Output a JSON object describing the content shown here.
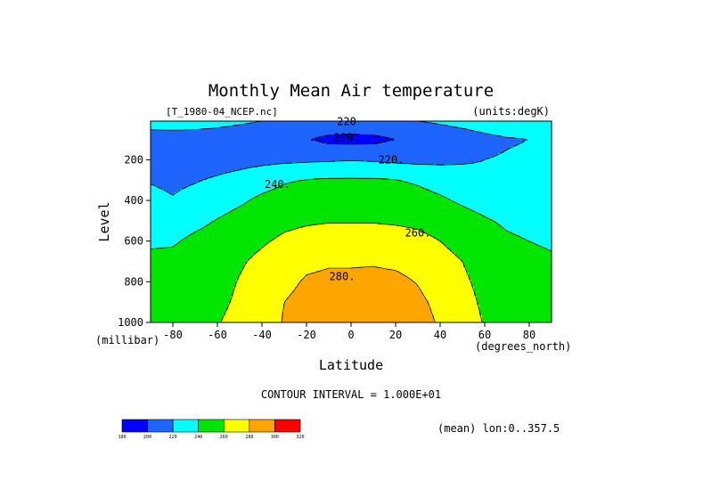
{
  "chart_data": {
    "type": "heatmap",
    "subtype": "filled-contour",
    "title": "Monthly Mean Air temperature",
    "file_label": "[T_1980-04_NCEP.nc]",
    "units_label": "(units:degK)",
    "xlabel": "Latitude",
    "xunit_label": "(degrees_north)",
    "ylabel": "Level",
    "yunit_label": "(millibar)",
    "xlim": [
      -90,
      90
    ],
    "ylim": [
      1000,
      10
    ],
    "y_reversed": true,
    "x_ticks": [
      "-80",
      "-60",
      "-40",
      "-20",
      "0",
      "20",
      "40",
      "60",
      "80"
    ],
    "y_ticks": [
      "200",
      "400",
      "600",
      "800",
      "1000"
    ],
    "contour_interval_label": "CONTOUR INTERVAL = 1.000E+01",
    "footnote": "(mean) lon:0..357.5",
    "contour_labels": [
      {
        "text": "220",
        "lat": -2,
        "lev": 12
      },
      {
        "text": "200.",
        "lat": -2,
        "lev": 92
      },
      {
        "text": "220.",
        "lat": 18,
        "lev": 200
      },
      {
        "text": "240.",
        "lat": -33,
        "lev": 320
      },
      {
        "text": "260.",
        "lat": 30,
        "lev": 560
      },
      {
        "text": "280.",
        "lat": -4,
        "lev": 775
      }
    ],
    "levels": [
      180,
      200,
      220,
      240,
      260,
      280,
      300,
      320
    ],
    "colorbar": {
      "ticks": [
        "180",
        "200",
        "220",
        "240",
        "260",
        "280",
        "300",
        "320"
      ],
      "colors": [
        "#0000ff",
        "#1e64ff",
        "#00ffff",
        "#00e600",
        "#ffff00",
        "#ffa500",
        "#ff0000"
      ]
    },
    "latitudes": [
      -90,
      -80,
      -70,
      -60,
      -50,
      -40,
      -30,
      -20,
      -10,
      0,
      10,
      20,
      30,
      40,
      50,
      60,
      70,
      80,
      90
    ],
    "pressure_levels": [
      10,
      100,
      200,
      300,
      400,
      500,
      600,
      700,
      800,
      900,
      1000
    ],
    "temperature": [
      [
        228,
        228,
        226,
        224,
        222,
        220,
        219,
        218,
        216,
        215,
        216,
        218,
        220,
        222,
        224,
        226,
        228,
        230,
        231
      ],
      [
        211,
        212,
        213,
        213,
        212,
        210,
        206,
        201,
        195,
        194,
        195,
        200,
        206,
        211,
        214,
        217,
        219,
        220,
        221
      ],
      [
        215,
        214,
        213,
        213,
        214,
        215,
        216,
        217,
        218,
        219,
        218,
        216,
        215,
        216,
        218,
        220,
        221,
        222,
        222
      ],
      [
        219,
        217,
        219,
        222,
        226,
        232,
        238,
        241,
        242,
        242,
        242,
        241,
        237,
        232,
        227,
        224,
        222,
        222,
        222
      ],
      [
        224,
        221,
        225,
        231,
        237,
        244,
        248,
        250,
        251,
        251,
        251,
        250,
        248,
        243,
        237,
        232,
        228,
        227,
        226
      ],
      [
        232,
        230,
        235,
        241,
        247,
        252,
        256,
        258,
        259,
        259,
        259,
        258,
        257,
        254,
        248,
        242,
        237,
        234,
        233
      ],
      [
        238,
        238,
        244,
        248,
        253,
        258,
        263,
        266,
        268,
        268,
        268,
        267,
        264,
        260,
        254,
        248,
        243,
        240,
        238
      ],
      [
        243,
        245,
        247,
        252,
        258,
        264,
        270,
        276,
        278,
        278,
        278,
        276,
        272,
        266,
        260,
        252,
        247,
        244,
        242
      ],
      [
        246,
        247,
        249,
        254,
        261,
        268,
        275,
        282,
        284,
        284,
        286,
        285,
        279,
        270,
        263,
        255,
        250,
        247,
        245
      ],
      [
        249,
        249,
        250,
        256,
        263,
        271,
        280,
        286,
        288,
        289,
        290,
        289,
        284,
        275,
        266,
        257,
        252,
        249,
        247
      ],
      [
        251,
        252,
        257,
        259,
        266,
        273,
        281,
        288,
        292,
        293,
        294,
        293,
        287,
        278,
        268,
        259,
        253,
        250,
        248
      ]
    ],
    "grid": false,
    "legend": "bottom-left colorbar"
  }
}
